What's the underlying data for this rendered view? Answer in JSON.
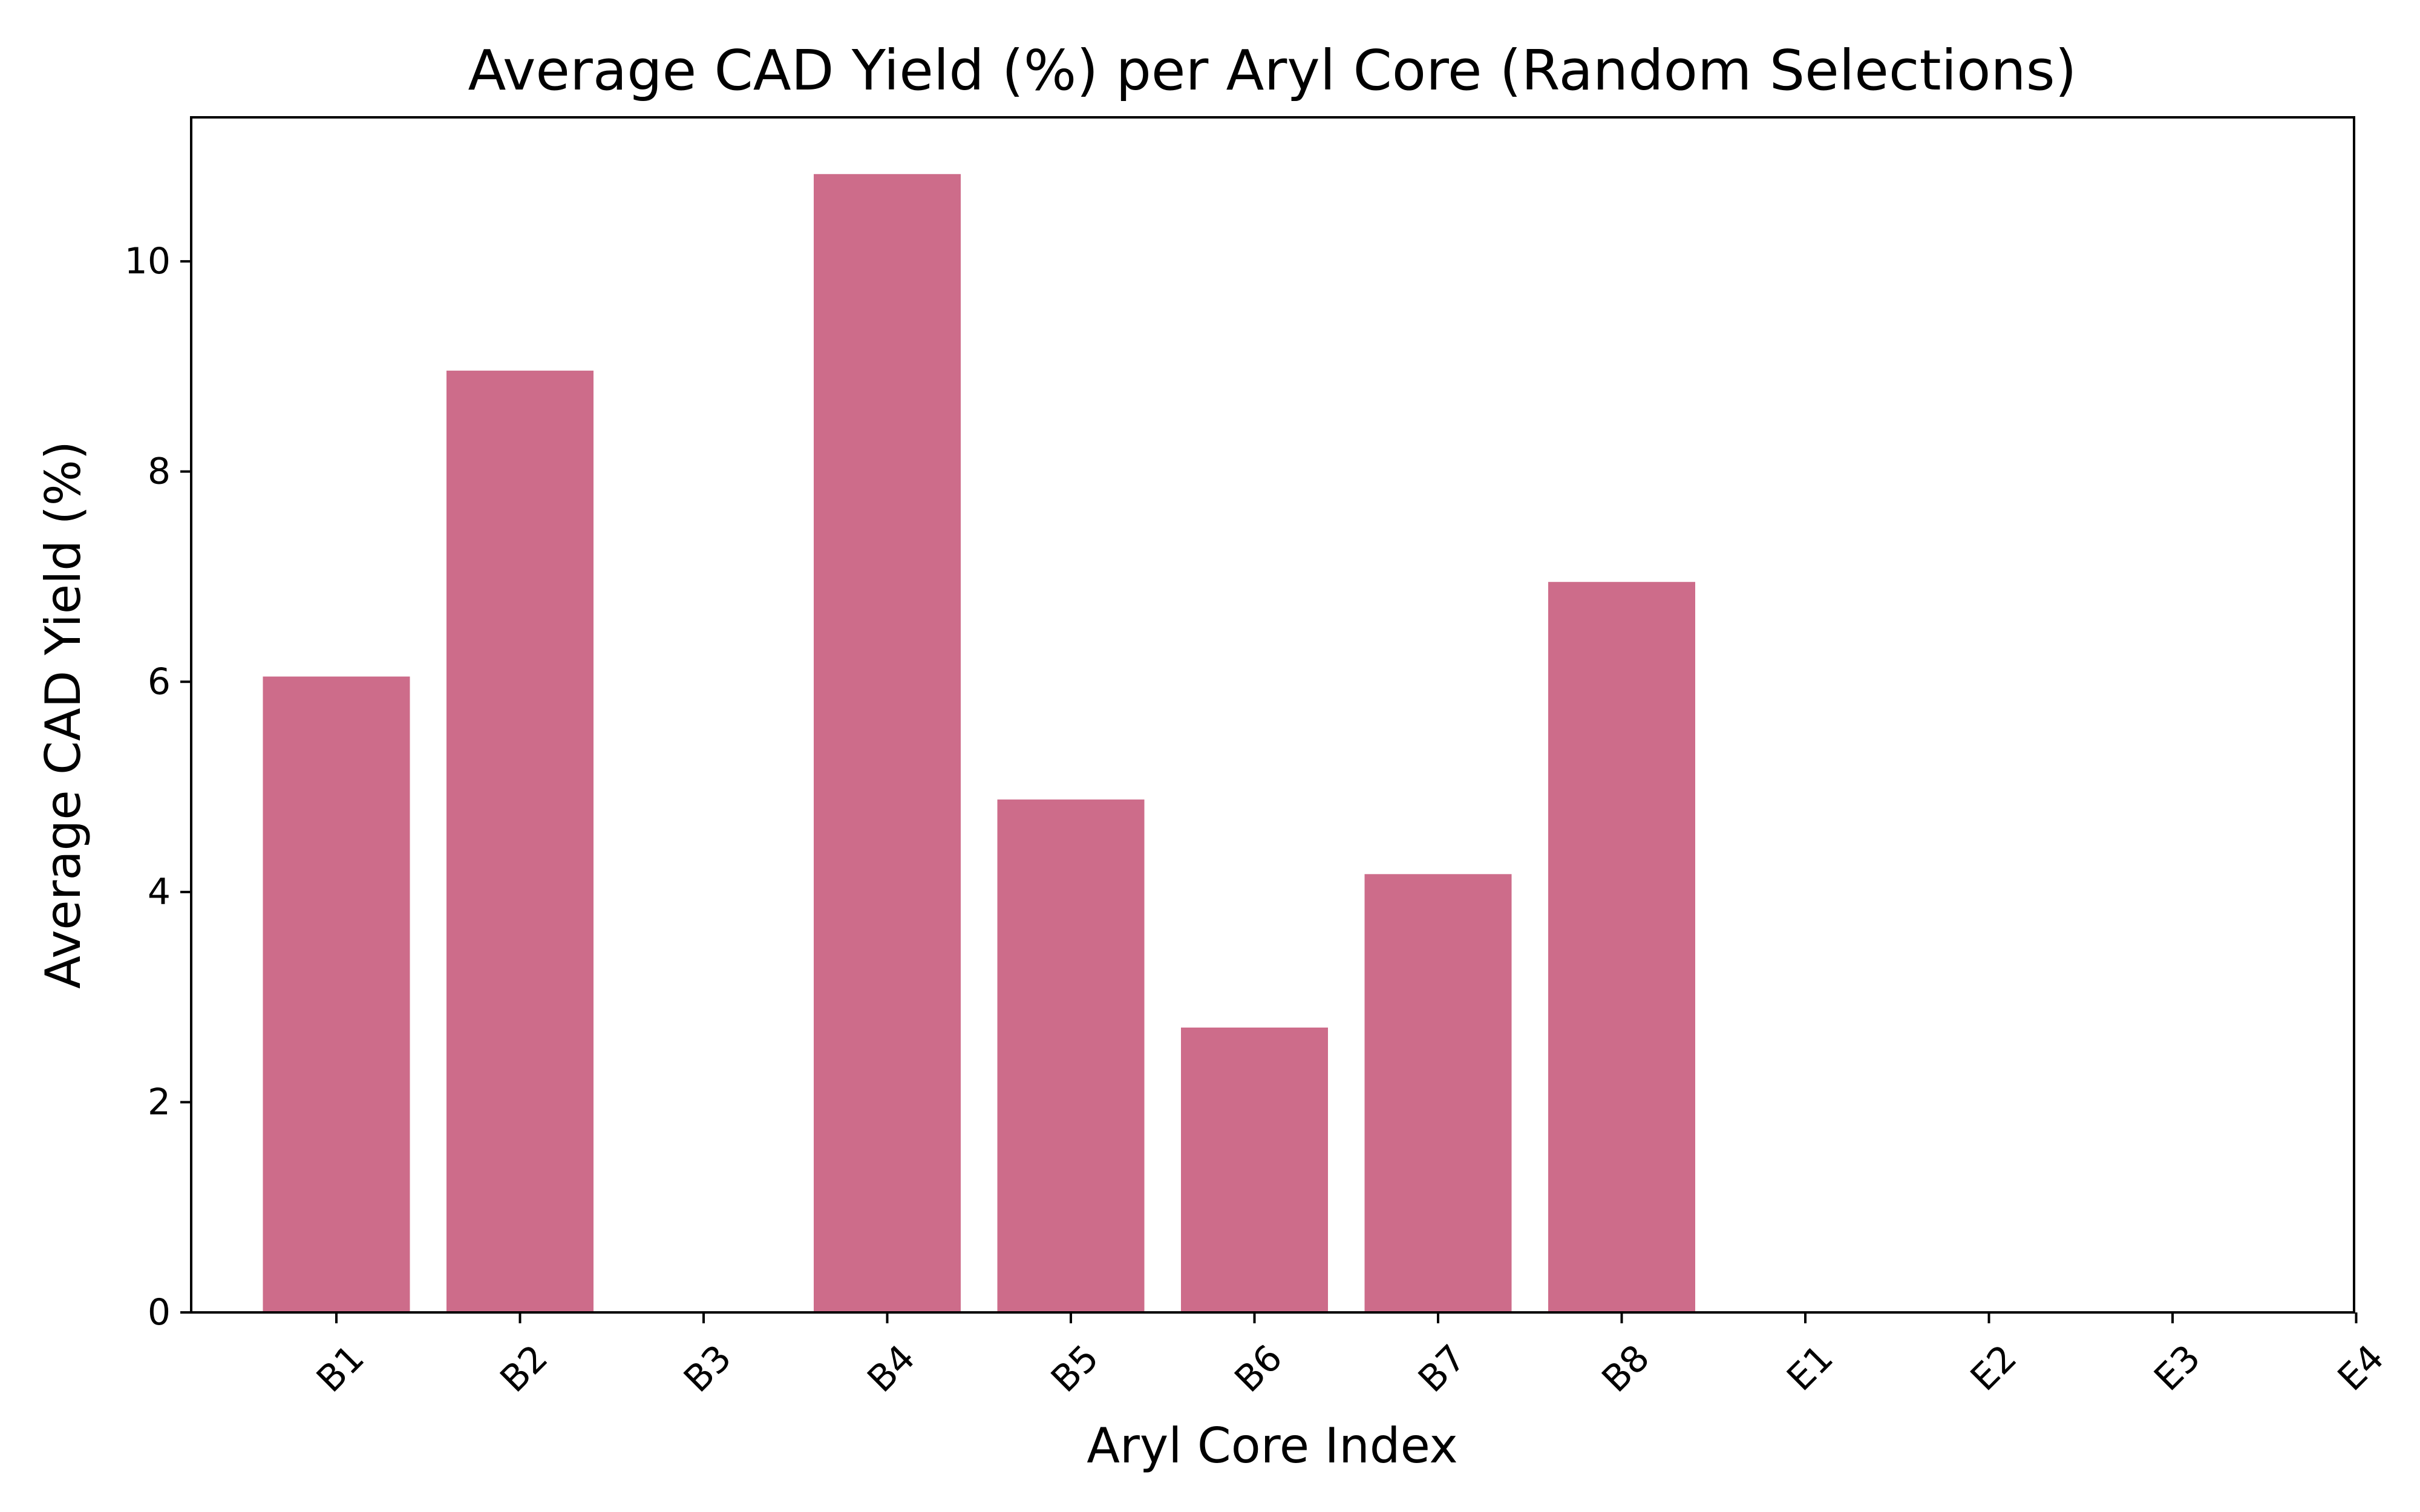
{
  "chart_data": {
    "type": "bar",
    "title": "Average CAD Yield (%) per Aryl Core (Random Selections)",
    "xlabel": "Aryl Core Index",
    "ylabel": "Average CAD Yield (%)",
    "categories": [
      "B1",
      "B2",
      "B3",
      "B4",
      "B5",
      "B6",
      "B7",
      "B8",
      "E1",
      "E2",
      "E3",
      "E4"
    ],
    "values": [
      6.05,
      8.96,
      0,
      10.83,
      4.88,
      2.71,
      4.17,
      6.95,
      0,
      0,
      0,
      0
    ],
    "ylim": [
      0,
      11.37
    ],
    "yticks": [
      0,
      2,
      4,
      6,
      8,
      10
    ],
    "bar_color": "#cd6c8a",
    "grid": false,
    "legend": "none"
  }
}
